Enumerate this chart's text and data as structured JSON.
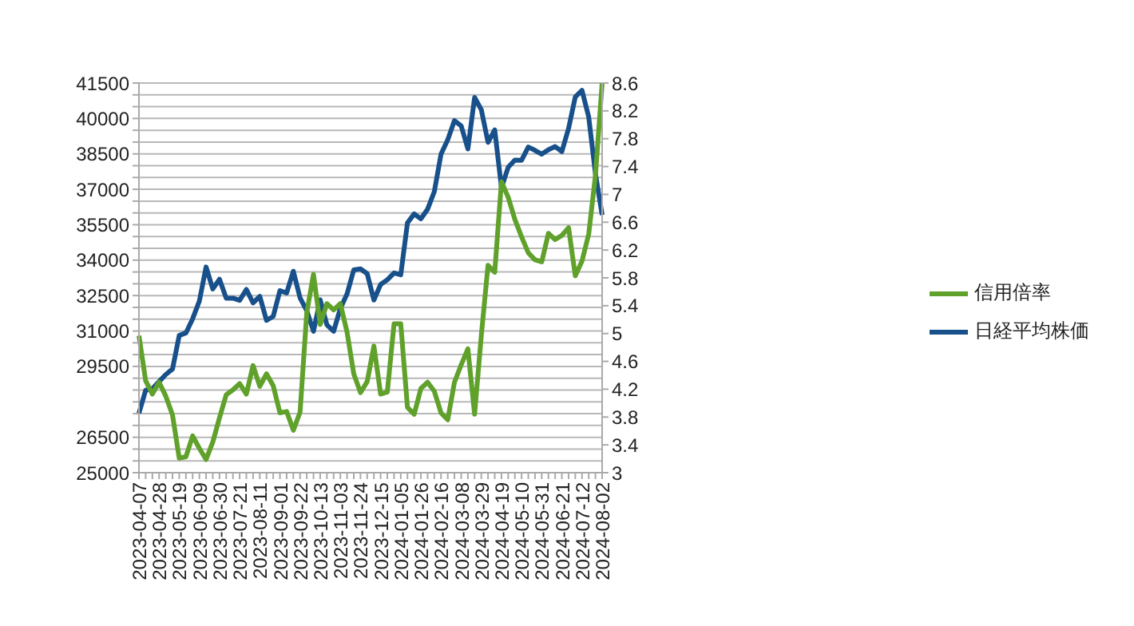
{
  "chart_data": {
    "type": "line",
    "categories": [
      "2023-04-07",
      null,
      null,
      "2023-04-28",
      null,
      null,
      "2023-05-19",
      null,
      null,
      "2023-06-09",
      null,
      null,
      "2023-06-30",
      null,
      null,
      "2023-07-21",
      null,
      null,
      "2023-08-11",
      null,
      null,
      "2023-09-01",
      null,
      null,
      "2023-09-22",
      null,
      null,
      "2023-10-13",
      null,
      null,
      "2023-11-03",
      null,
      null,
      "2023-11-24",
      null,
      null,
      "2023-12-15",
      null,
      null,
      "2024-01-05",
      null,
      null,
      "2024-01-26",
      null,
      null,
      "2024-02-16",
      null,
      null,
      "2024-03-08",
      null,
      null,
      "2024-03-29",
      null,
      null,
      "2024-04-19",
      null,
      null,
      "2024-05-10",
      null,
      null,
      "2024-05-31",
      null,
      null,
      "2024-06-21",
      null,
      null,
      "2024-07-12",
      null,
      null,
      "2024-08-02"
    ],
    "series": [
      {
        "name": "日経平均株価",
        "color": "#17508a",
        "values": [
          27520,
          28490,
          28560,
          28860,
          29160,
          29390,
          30810,
          30920,
          31520,
          32270,
          33710,
          32780,
          33190,
          32390,
          32390,
          32300,
          32760,
          32190,
          32470,
          31450,
          31620,
          32710,
          32610,
          33530,
          32400,
          31860,
          30990,
          32320,
          31260,
          30990,
          31950,
          32570,
          33590,
          33630,
          33430,
          32310,
          32970,
          33170,
          33460,
          33380,
          35580,
          35960,
          35750,
          36160,
          36900,
          38490,
          39100,
          39910,
          39690,
          38710,
          40890,
          40370,
          38990,
          39520,
          37070,
          37930,
          38240,
          38230,
          38790,
          38650,
          38490,
          38680,
          38810,
          38600,
          39580,
          40910,
          41190,
          40060,
          37670,
          35910
        ]
      },
      {
        "name": "信用倍率",
        "color": "#5fa12a",
        "axis": "y2",
        "values": [
          4.97,
          4.32,
          4.13,
          4.3,
          4.1,
          3.83,
          3.21,
          3.23,
          3.53,
          3.35,
          3.19,
          3.44,
          3.79,
          4.12,
          4.19,
          4.28,
          4.13,
          4.54,
          4.24,
          4.42,
          4.25,
          3.86,
          3.88,
          3.61,
          3.87,
          5.3,
          5.85,
          5.13,
          5.43,
          5.34,
          5.43,
          5.02,
          4.42,
          4.15,
          4.31,
          4.82,
          4.13,
          4.16,
          5.14,
          5.14,
          3.94,
          3.84,
          4.21,
          4.3,
          4.17,
          3.86,
          3.76,
          4.3,
          4.55,
          4.78,
          3.84,
          4.97,
          5.98,
          5.88,
          7.18,
          6.96,
          6.64,
          6.39,
          6.16,
          6.06,
          6.03,
          6.44,
          6.35,
          6.41,
          6.52,
          5.83,
          6.04,
          6.43,
          7.27,
          8.6
        ]
      }
    ],
    "ylim": [
      25000,
      41500
    ],
    "yticks": [
      25000,
      {
        "value": 25500,
        "label": null
      },
      {
        "value": 26000,
        "label": null
      },
      26500,
      {
        "value": 27000,
        "label": null
      },
      {
        "value": 27500,
        "label": null
      },
      {
        "value": 28000,
        "label": null
      },
      {
        "value": 28500,
        "label": null
      },
      {
        "value": 29000,
        "label": null
      },
      29500,
      {
        "value": 30000,
        "label": null
      },
      {
        "value": 30500,
        "label": null
      },
      31000,
      {
        "value": 31500,
        "label": null
      },
      {
        "value": 32000,
        "label": null
      },
      32500,
      {
        "value": 33000,
        "label": null
      },
      {
        "value": 33500,
        "label": null
      },
      34000,
      {
        "value": 34500,
        "label": null
      },
      {
        "value": 35000,
        "label": null
      },
      35500,
      {
        "value": 36000,
        "label": null
      },
      {
        "value": 36500,
        "label": null
      },
      37000,
      {
        "value": 37500,
        "label": null
      },
      {
        "value": 38000,
        "label": null
      },
      38500,
      {
        "value": 39000,
        "label": null
      },
      {
        "value": 39500,
        "label": null
      },
      40000,
      {
        "value": 40500,
        "label": null
      },
      {
        "value": 41000,
        "label": null
      },
      41500
    ],
    "y2lim": [
      3,
      8.6
    ],
    "y2ticks": [
      3,
      3.4,
      3.8,
      4.2,
      4.6,
      5,
      5.4,
      5.8,
      6.2,
      6.6,
      7,
      7.4,
      7.8,
      8.2,
      8.6
    ],
    "grid": "y",
    "legend": "right",
    "marker": "none",
    "line_style": "solid"
  }
}
